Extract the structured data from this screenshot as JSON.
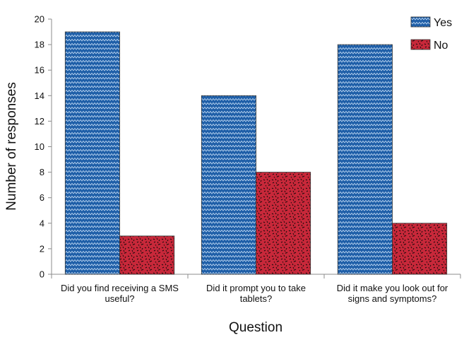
{
  "chart_data": {
    "type": "bar",
    "title": "",
    "xlabel": "Question",
    "ylabel": "Number of responses",
    "ylim": [
      0,
      20
    ],
    "ytick_step": 2,
    "grid": false,
    "legend_position": "top-right",
    "categories": [
      [
        "Did you find receiving a SMS",
        "useful?"
      ],
      [
        "Did it prompt you to take",
        "tablets?"
      ],
      [
        "Did it make you look out for",
        "signs and symptoms?"
      ]
    ],
    "series": [
      {
        "name": "Yes",
        "values": [
          19,
          14,
          18
        ],
        "color": "#1f5fa8",
        "pattern": "zigzag"
      },
      {
        "name": "No",
        "values": [
          3,
          8,
          4
        ],
        "color": "#c8283a",
        "pattern": "confetti"
      }
    ]
  }
}
